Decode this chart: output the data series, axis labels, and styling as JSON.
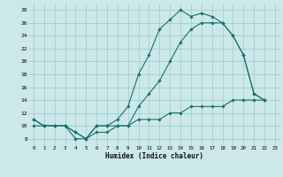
{
  "xlabel": "Humidex (Indice chaleur)",
  "bg_color": "#cce8e8",
  "line_color": "#1a7070",
  "grid_color": "#99cccc",
  "xlim": [
    -0.5,
    23.5
  ],
  "ylim": [
    7,
    29
  ],
  "yticks": [
    8,
    10,
    12,
    14,
    16,
    18,
    20,
    22,
    24,
    26,
    28
  ],
  "xticks": [
    0,
    1,
    2,
    3,
    4,
    5,
    6,
    7,
    8,
    9,
    10,
    11,
    12,
    13,
    14,
    15,
    16,
    17,
    18,
    19,
    20,
    21,
    22,
    23
  ],
  "line1_y": [
    11,
    10,
    10,
    10,
    8,
    8,
    10,
    10,
    11,
    13,
    18,
    21,
    25,
    26.5,
    28,
    27,
    27.5,
    27,
    26,
    24,
    21,
    15,
    14,
    null
  ],
  "line2_y": [
    11,
    10,
    10,
    10,
    9,
    8,
    10,
    10,
    10,
    10,
    13,
    15,
    17,
    20,
    23,
    25,
    26,
    26,
    26,
    24,
    21,
    15,
    14,
    null
  ],
  "line3_y": [
    10,
    10,
    10,
    10,
    9,
    8,
    9,
    9,
    10,
    10,
    11,
    11,
    11,
    12,
    12,
    13,
    13,
    13,
    13,
    14,
    14,
    14,
    14,
    null
  ]
}
